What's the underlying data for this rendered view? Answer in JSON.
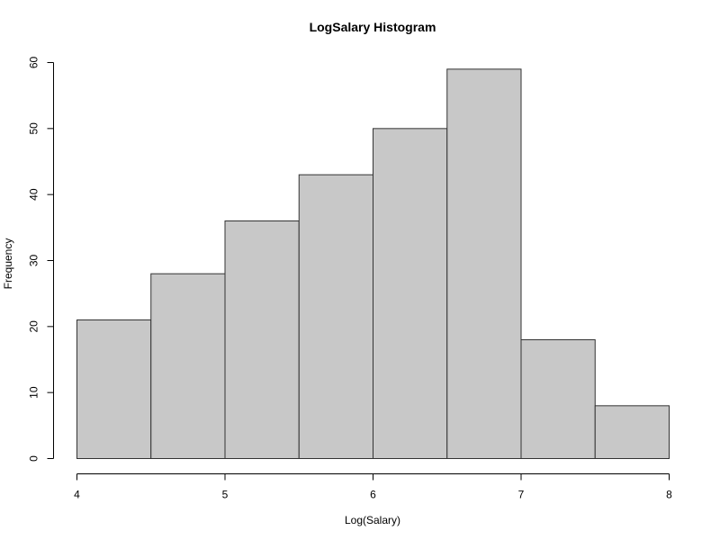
{
  "chart_data": {
    "type": "bar",
    "title": "LogSalary Histogram",
    "xlabel": "Log(Salary)",
    "ylabel": "Frequency",
    "bins": [
      {
        "start": 4.0,
        "end": 4.5,
        "count": 21
      },
      {
        "start": 4.5,
        "end": 5.0,
        "count": 28
      },
      {
        "start": 5.0,
        "end": 5.5,
        "count": 36
      },
      {
        "start": 5.5,
        "end": 6.0,
        "count": 43
      },
      {
        "start": 6.0,
        "end": 6.5,
        "count": 50
      },
      {
        "start": 6.5,
        "end": 7.0,
        "count": 59
      },
      {
        "start": 7.0,
        "end": 7.5,
        "count": 18
      },
      {
        "start": 7.5,
        "end": 8.0,
        "count": 8
      }
    ],
    "xlim": [
      4,
      8
    ],
    "ylim": [
      0,
      60
    ],
    "x_ticks": [
      4,
      5,
      6,
      7,
      8
    ],
    "y_ticks": [
      0,
      10,
      20,
      30,
      40,
      50,
      60
    ],
    "grid": false,
    "colors": {
      "bar_fill": "#c8c8c8",
      "bar_stroke": "#333333"
    }
  }
}
